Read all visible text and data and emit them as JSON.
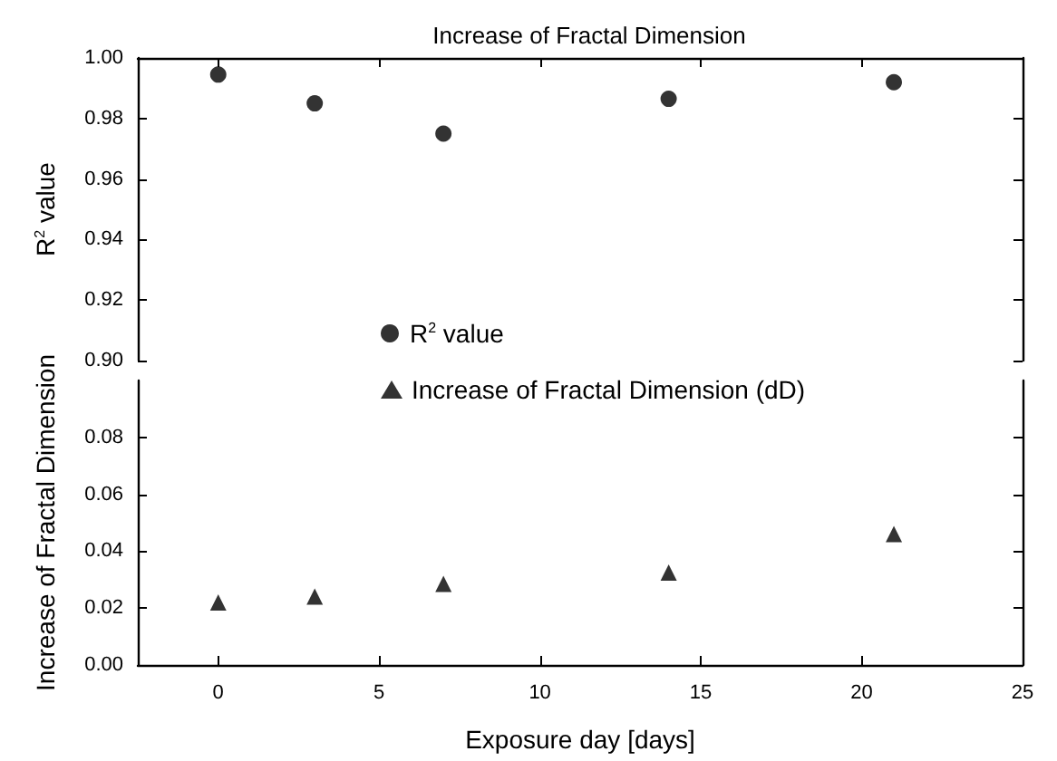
{
  "chart_data": [
    {
      "type": "scatter",
      "title": "Increase of Fractal Dimension",
      "ylabel": "R$^{2}$ value",
      "x": [
        0,
        3,
        7,
        14,
        21
      ],
      "series": [
        {
          "name": "R$^{2}$ value",
          "color": "#000000",
          "marker": "circle",
          "values": [
            0.9945,
            0.985,
            0.975,
            0.9865,
            0.992
          ]
        }
      ],
      "xlim": [
        -2.5,
        25
      ],
      "xticks": [
        0,
        5,
        10,
        15,
        20,
        25
      ],
      "ylim": [
        0.9,
        1.0
      ],
      "yticks": [
        {
          "value": 0.9,
          "label": "0.90"
        },
        {
          "value": 0.92,
          "label": "0.92"
        },
        {
          "value": 0.94,
          "label": "0.94"
        },
        {
          "value": 0.96,
          "label": "0.96"
        },
        {
          "value": 0.98,
          "label": "0.98"
        },
        {
          "value": 1.0,
          "label": "1.00"
        }
      ],
      "tick_labels": "y",
      "legend": "bottom"
    },
    {
      "type": "scatter",
      "ylabel": "Increase of Fractal Dimension",
      "xlabel": "Exposure day [days]",
      "x": [
        0,
        3,
        7,
        14,
        21
      ],
      "series": [
        {
          "name": "Increase of Fractal Dimension (dD)",
          "color": "#000000",
          "marker": "triangle",
          "values": [
            0.022,
            0.024,
            0.0285,
            0.0325,
            0.046
          ]
        }
      ],
      "xlim": [
        -2.5,
        25
      ],
      "xticks": [
        0,
        5,
        10,
        15,
        20,
        25
      ],
      "ylim": [
        0,
        0.1
      ],
      "yticks": [
        {
          "value": 0,
          "label": "0.00"
        },
        {
          "value": 0.02,
          "label": "0.02"
        },
        {
          "value": 0.04,
          "label": "0.04"
        },
        {
          "value": 0.06,
          "label": "0.06"
        },
        {
          "value": 0.08,
          "label": "0.08"
        }
      ],
      "legend": "top"
    }
  ]
}
